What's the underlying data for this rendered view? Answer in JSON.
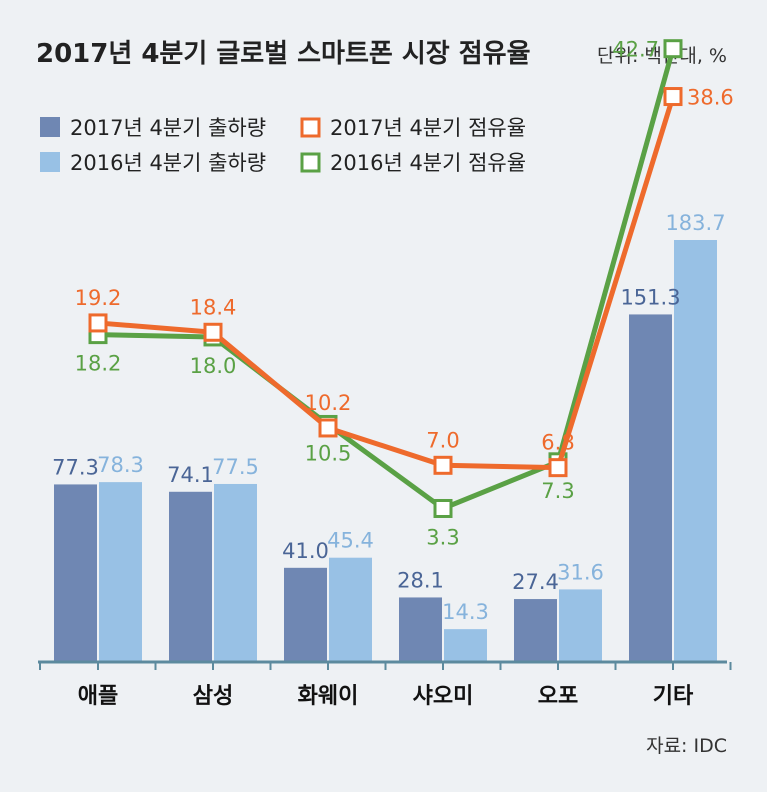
{
  "title": "2017년 4분기 글로벌 스마트폰 시장 점유율",
  "unit": "단위: 백만대, %",
  "source": "자료: IDC",
  "colors": {
    "bar_2017": "#6f87b3",
    "bar_2016": "#98c1e5",
    "line_2017": "#ee6a2c",
    "line_2016": "#5aa145",
    "label_2017": "#4a6596",
    "label_2016": "#86b3dc",
    "axis": "#5c8a9e",
    "background": "#eef1f4"
  },
  "legend": [
    {
      "label": "2017년 4분기 출하량",
      "kind": "bar",
      "series": "shipments_2017"
    },
    {
      "label": "2016년 4분기 출하량",
      "kind": "bar",
      "series": "shipments_2016"
    },
    {
      "label": "2017년 4분기 점유율",
      "kind": "line",
      "series": "share_2017"
    },
    {
      "label": "2016년 4분기 점유율",
      "kind": "line",
      "series": "share_2016"
    }
  ],
  "chart_data": {
    "type": "bar",
    "categories": [
      "애플",
      "삼성",
      "화웨이",
      "샤오미",
      "오포",
      "기타"
    ],
    "series": [
      {
        "name": "2017년 4분기 출하량",
        "values": [
          77.3,
          74.1,
          41.0,
          28.1,
          27.4,
          151.3
        ]
      },
      {
        "name": "2016년 4분기 출하량",
        "values": [
          78.3,
          77.5,
          45.4,
          14.3,
          31.6,
          183.7
        ]
      },
      {
        "name": "2017년 4분기 점유율",
        "type": "line",
        "values": [
          19.2,
          18.4,
          10.2,
          7.0,
          6.8,
          38.6
        ]
      },
      {
        "name": "2016년 4분기 점유율",
        "type": "line",
        "values": [
          18.2,
          18.0,
          10.5,
          3.3,
          7.3,
          42.7
        ]
      }
    ],
    "value_labels": {
      "shipments_2017": [
        "77.3",
        "74.1",
        "41.0",
        "28.1",
        "27.4",
        "151.3"
      ],
      "shipments_2016": [
        "78.3",
        "77.5",
        "45.4",
        "14.3",
        "31.6",
        "183.7"
      ],
      "share_2017": [
        "19.2",
        "18.4",
        "10.2",
        "7.0",
        "6.8",
        "38.6"
      ],
      "share_2016": [
        "18.2",
        "18.0",
        "10.5",
        "3.3",
        "7.3",
        "42.7"
      ]
    },
    "legend_position": "top-left"
  }
}
